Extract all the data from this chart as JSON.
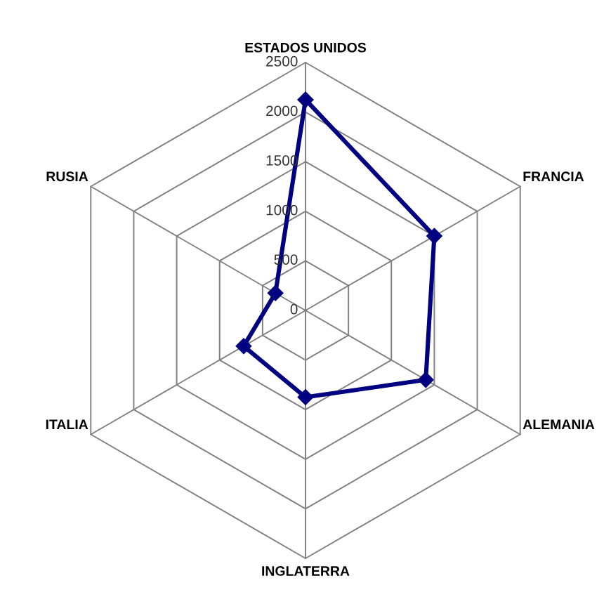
{
  "chart_data": {
    "type": "radar",
    "categories": [
      "ESTADOS UNIDOS",
      "FRANCIA",
      "ALEMANIA",
      "INGLATERRA",
      "ITALIA",
      "RUSIA"
    ],
    "series": [
      {
        "color": "#000080",
        "values": [
          2125,
          1500,
          1400,
          875,
          720,
          350
        ]
      }
    ],
    "ylim": [
      0,
      2500
    ],
    "yticks": [
      0,
      500,
      1000,
      1500,
      2000,
      2500
    ],
    "marker": "diamond",
    "grid": true
  }
}
